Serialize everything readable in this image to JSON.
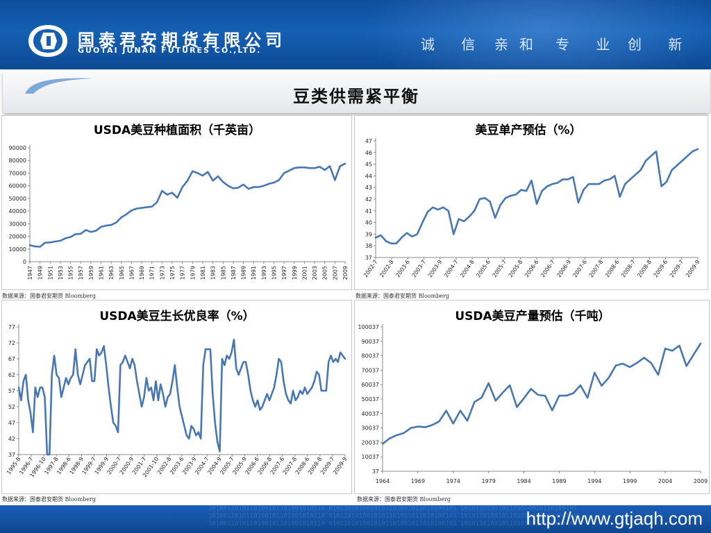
{
  "header": {
    "company_cn": "国泰君安期货有限公司",
    "company_en": "GUOTAI JUNAN FUTURES CO.,LTD.",
    "slogan": [
      "诚 信",
      "亲和",
      "专 业",
      "创 新"
    ]
  },
  "page": {
    "title": "豆类供需紧平衡"
  },
  "footer": {
    "url": "http://www.gtjaqh.com",
    "decor_binary": "1010011010110100101101001010110 0101101010010101101001011010100101 1010110100101101010010110100101"
  },
  "colors": {
    "line": "#4677b3",
    "header": "#1560b3"
  },
  "chart_data": [
    {
      "type": "line",
      "title": "USDA美豆种植面积（千英亩）",
      "source": "数据来源：国泰君安期货 Bloomberg",
      "ylim": [
        0,
        90000
      ],
      "yticks": [
        0,
        10000,
        20000,
        30000,
        40000,
        50000,
        60000,
        70000,
        80000,
        90000
      ],
      "xlim": [
        1947,
        2009
      ],
      "xticks": [
        "1947",
        "1949",
        "1951",
        "1953",
        "1955",
        "1957",
        "1959",
        "1961",
        "1963",
        "1965",
        "1967",
        "1969",
        "1971",
        "1973",
        "1975",
        "1977",
        "1979",
        "1981",
        "1983",
        "1985",
        "1987",
        "1989",
        "1991",
        "1993",
        "1995",
        "1997",
        "1999",
        "2001",
        "2003",
        "2005",
        "2007",
        "2009"
      ],
      "x": [
        1947,
        1948,
        1949,
        1950,
        1951,
        1952,
        1953,
        1954,
        1955,
        1956,
        1957,
        1958,
        1959,
        1960,
        1961,
        1962,
        1963,
        1964,
        1965,
        1966,
        1967,
        1968,
        1969,
        1970,
        1971,
        1972,
        1973,
        1974,
        1975,
        1976,
        1977,
        1978,
        1979,
        1980,
        1981,
        1982,
        1983,
        1984,
        1985,
        1986,
        1987,
        1988,
        1989,
        1990,
        1991,
        1992,
        1993,
        1994,
        1995,
        1996,
        1997,
        1998,
        1999,
        2000,
        2001,
        2002,
        2003,
        2004,
        2005,
        2006,
        2007,
        2008,
        2009
      ],
      "values": [
        13000,
        12000,
        11800,
        15000,
        15200,
        15900,
        16500,
        18500,
        19500,
        21800,
        22000,
        25000,
        23500,
        24500,
        27500,
        28500,
        29000,
        31000,
        35000,
        37500,
        40500,
        42000,
        42500,
        43000,
        43500,
        47000,
        56000,
        53000,
        54500,
        50500,
        59000,
        64000,
        71500,
        70000,
        68000,
        71000,
        64000,
        67500,
        63000,
        60000,
        58000,
        58500,
        61000,
        57500,
        59000,
        59000,
        60000,
        61500,
        62500,
        64500,
        70000,
        72000,
        74000,
        74500,
        74500,
        74000,
        74000,
        75000,
        72500,
        75500,
        64500,
        75500,
        77500
      ],
      "xlabel": "",
      "ylabel": ""
    },
    {
      "type": "line",
      "title": "美豆单产预估（%）",
      "source": "数据来源：国泰君安期货 Bloomberg",
      "ylim": [
        37,
        47
      ],
      "yticks": [
        37,
        38,
        39,
        40,
        41,
        42,
        43,
        44,
        45,
        46,
        47
      ],
      "xticks": [
        "2002-7",
        "2002-8",
        "2003-6",
        "2003-7",
        "2003-9",
        "2004-7",
        "2004-8",
        "2005-6",
        "2005-7",
        "2005-8",
        "2006-6",
        "2006-7",
        "2006-9",
        "2007-6",
        "2007-8",
        "2008-6",
        "2008-7",
        "2008-8",
        "2009-6",
        "2009-7",
        "2009-9"
      ],
      "values": [
        38.7,
        38.9,
        38.4,
        38.2,
        38.2,
        38.7,
        39.1,
        38.8,
        39.0,
        40.0,
        40.9,
        41.3,
        41.1,
        41.3,
        41.0,
        39.0,
        40.3,
        40.1,
        40.5,
        41.0,
        42.0,
        42.1,
        41.8,
        40.4,
        41.5,
        42.1,
        42.3,
        42.4,
        42.8,
        42.7,
        43.6,
        41.6,
        42.7,
        43.1,
        43.3,
        43.4,
        43.7,
        43.7,
        43.9,
        41.7,
        42.8,
        43.3,
        43.3,
        43.3,
        43.6,
        43.7,
        44.0,
        42.2,
        43.3,
        43.7,
        44.1,
        44.5,
        45.3,
        45.7,
        46.1,
        43.1,
        43.5,
        44.5,
        44.9,
        45.3,
        45.7,
        46.1,
        46.3
      ],
      "xlabel": "",
      "ylabel": ""
    },
    {
      "type": "line",
      "title": "USDA美豆生长优良率（%）",
      "source": "数据来源：国泰君安期货 Bloomberg",
      "ylim": [
        37,
        77
      ],
      "yticks": [
        37,
        42,
        47,
        52,
        57,
        62,
        67,
        72,
        77
      ],
      "xticks": [
        "1995-8",
        "1996-7",
        "1996-10",
        "1997-8",
        "1998-6",
        "1998-9",
        "1999-7",
        "1999-9",
        "2000-7",
        "2000-9",
        "2001-7",
        "2001-10",
        "2002-8",
        "2003-6",
        "2003-9",
        "2004-7",
        "2004-9",
        "2005-7",
        "2005-9",
        "2006-6",
        "2006-8",
        "2007-6",
        "2007-8",
        "2008-6",
        "2008-8",
        "2009-7",
        "2009-9"
      ],
      "values": [
        58,
        54,
        60,
        62,
        54,
        50,
        44,
        58,
        55,
        58,
        58,
        55,
        37,
        37,
        62,
        68,
        62,
        61,
        55,
        58,
        61,
        59,
        61,
        62,
        70,
        62,
        59,
        62,
        65,
        66,
        67,
        60,
        60,
        70,
        68,
        69,
        71,
        65,
        58,
        52,
        47,
        46,
        44,
        65,
        66,
        68,
        66,
        64,
        67,
        65,
        60,
        56,
        52,
        55,
        61,
        57,
        58,
        54,
        60,
        54,
        59,
        56,
        52,
        55,
        56,
        60,
        65,
        58,
        52,
        49,
        46,
        43,
        42,
        46,
        45,
        43,
        44,
        42,
        65,
        70,
        70,
        70,
        56,
        47,
        41,
        38,
        67,
        65,
        68,
        67,
        69,
        73,
        64,
        62,
        64,
        66,
        66,
        62,
        57,
        54,
        52,
        54,
        51,
        52,
        54,
        56,
        54,
        56,
        58,
        62,
        67,
        66,
        60,
        56,
        54,
        53,
        57,
        54,
        55,
        57,
        56,
        58,
        56,
        57,
        58,
        60,
        63,
        62,
        57,
        57,
        57,
        66,
        68,
        66,
        67,
        66,
        69,
        68,
        67
      ],
      "xlabel": "",
      "ylabel": ""
    },
    {
      "type": "line",
      "title": "USDA美豆产量预估（千吨）",
      "source": "数据来源：国泰君安期货 Bloomberg",
      "ylim": [
        37,
        100037
      ],
      "yticks": [
        37,
        10037,
        20037,
        30037,
        40037,
        50037,
        60037,
        70037,
        80037,
        90037,
        100037
      ],
      "xlim": [
        1964,
        2009
      ],
      "xticks": [
        "1964",
        "1969",
        "1974",
        "1979",
        "1984",
        "1989",
        "1994",
        "1999",
        "2004",
        "2009"
      ],
      "x": [
        1964,
        1965,
        1966,
        1967,
        1968,
        1969,
        1970,
        1971,
        1972,
        1973,
        1974,
        1975,
        1976,
        1977,
        1978,
        1979,
        1980,
        1981,
        1982,
        1983,
        1984,
        1985,
        1986,
        1987,
        1988,
        1989,
        1990,
        1991,
        1992,
        1993,
        1994,
        1995,
        1996,
        1997,
        1998,
        1999,
        2000,
        2001,
        2002,
        2003,
        2004,
        2005,
        2006,
        2007,
        2008,
        2009
      ],
      "values": [
        19000,
        22800,
        25000,
        26500,
        30000,
        31000,
        30500,
        32000,
        34500,
        42000,
        33000,
        42000,
        35000,
        48000,
        51000,
        61000,
        48900,
        54400,
        59600,
        44500,
        50600,
        57100,
        52900,
        52300,
        42200,
        52400,
        52400,
        54100,
        59600,
        50900,
        68400,
        59200,
        64800,
        73200,
        74600,
        72200,
        75100,
        78700,
        75000,
        66800,
        85000,
        83500,
        87000,
        72900,
        80700,
        88500
      ],
      "xlabel": "",
      "ylabel": ""
    }
  ]
}
